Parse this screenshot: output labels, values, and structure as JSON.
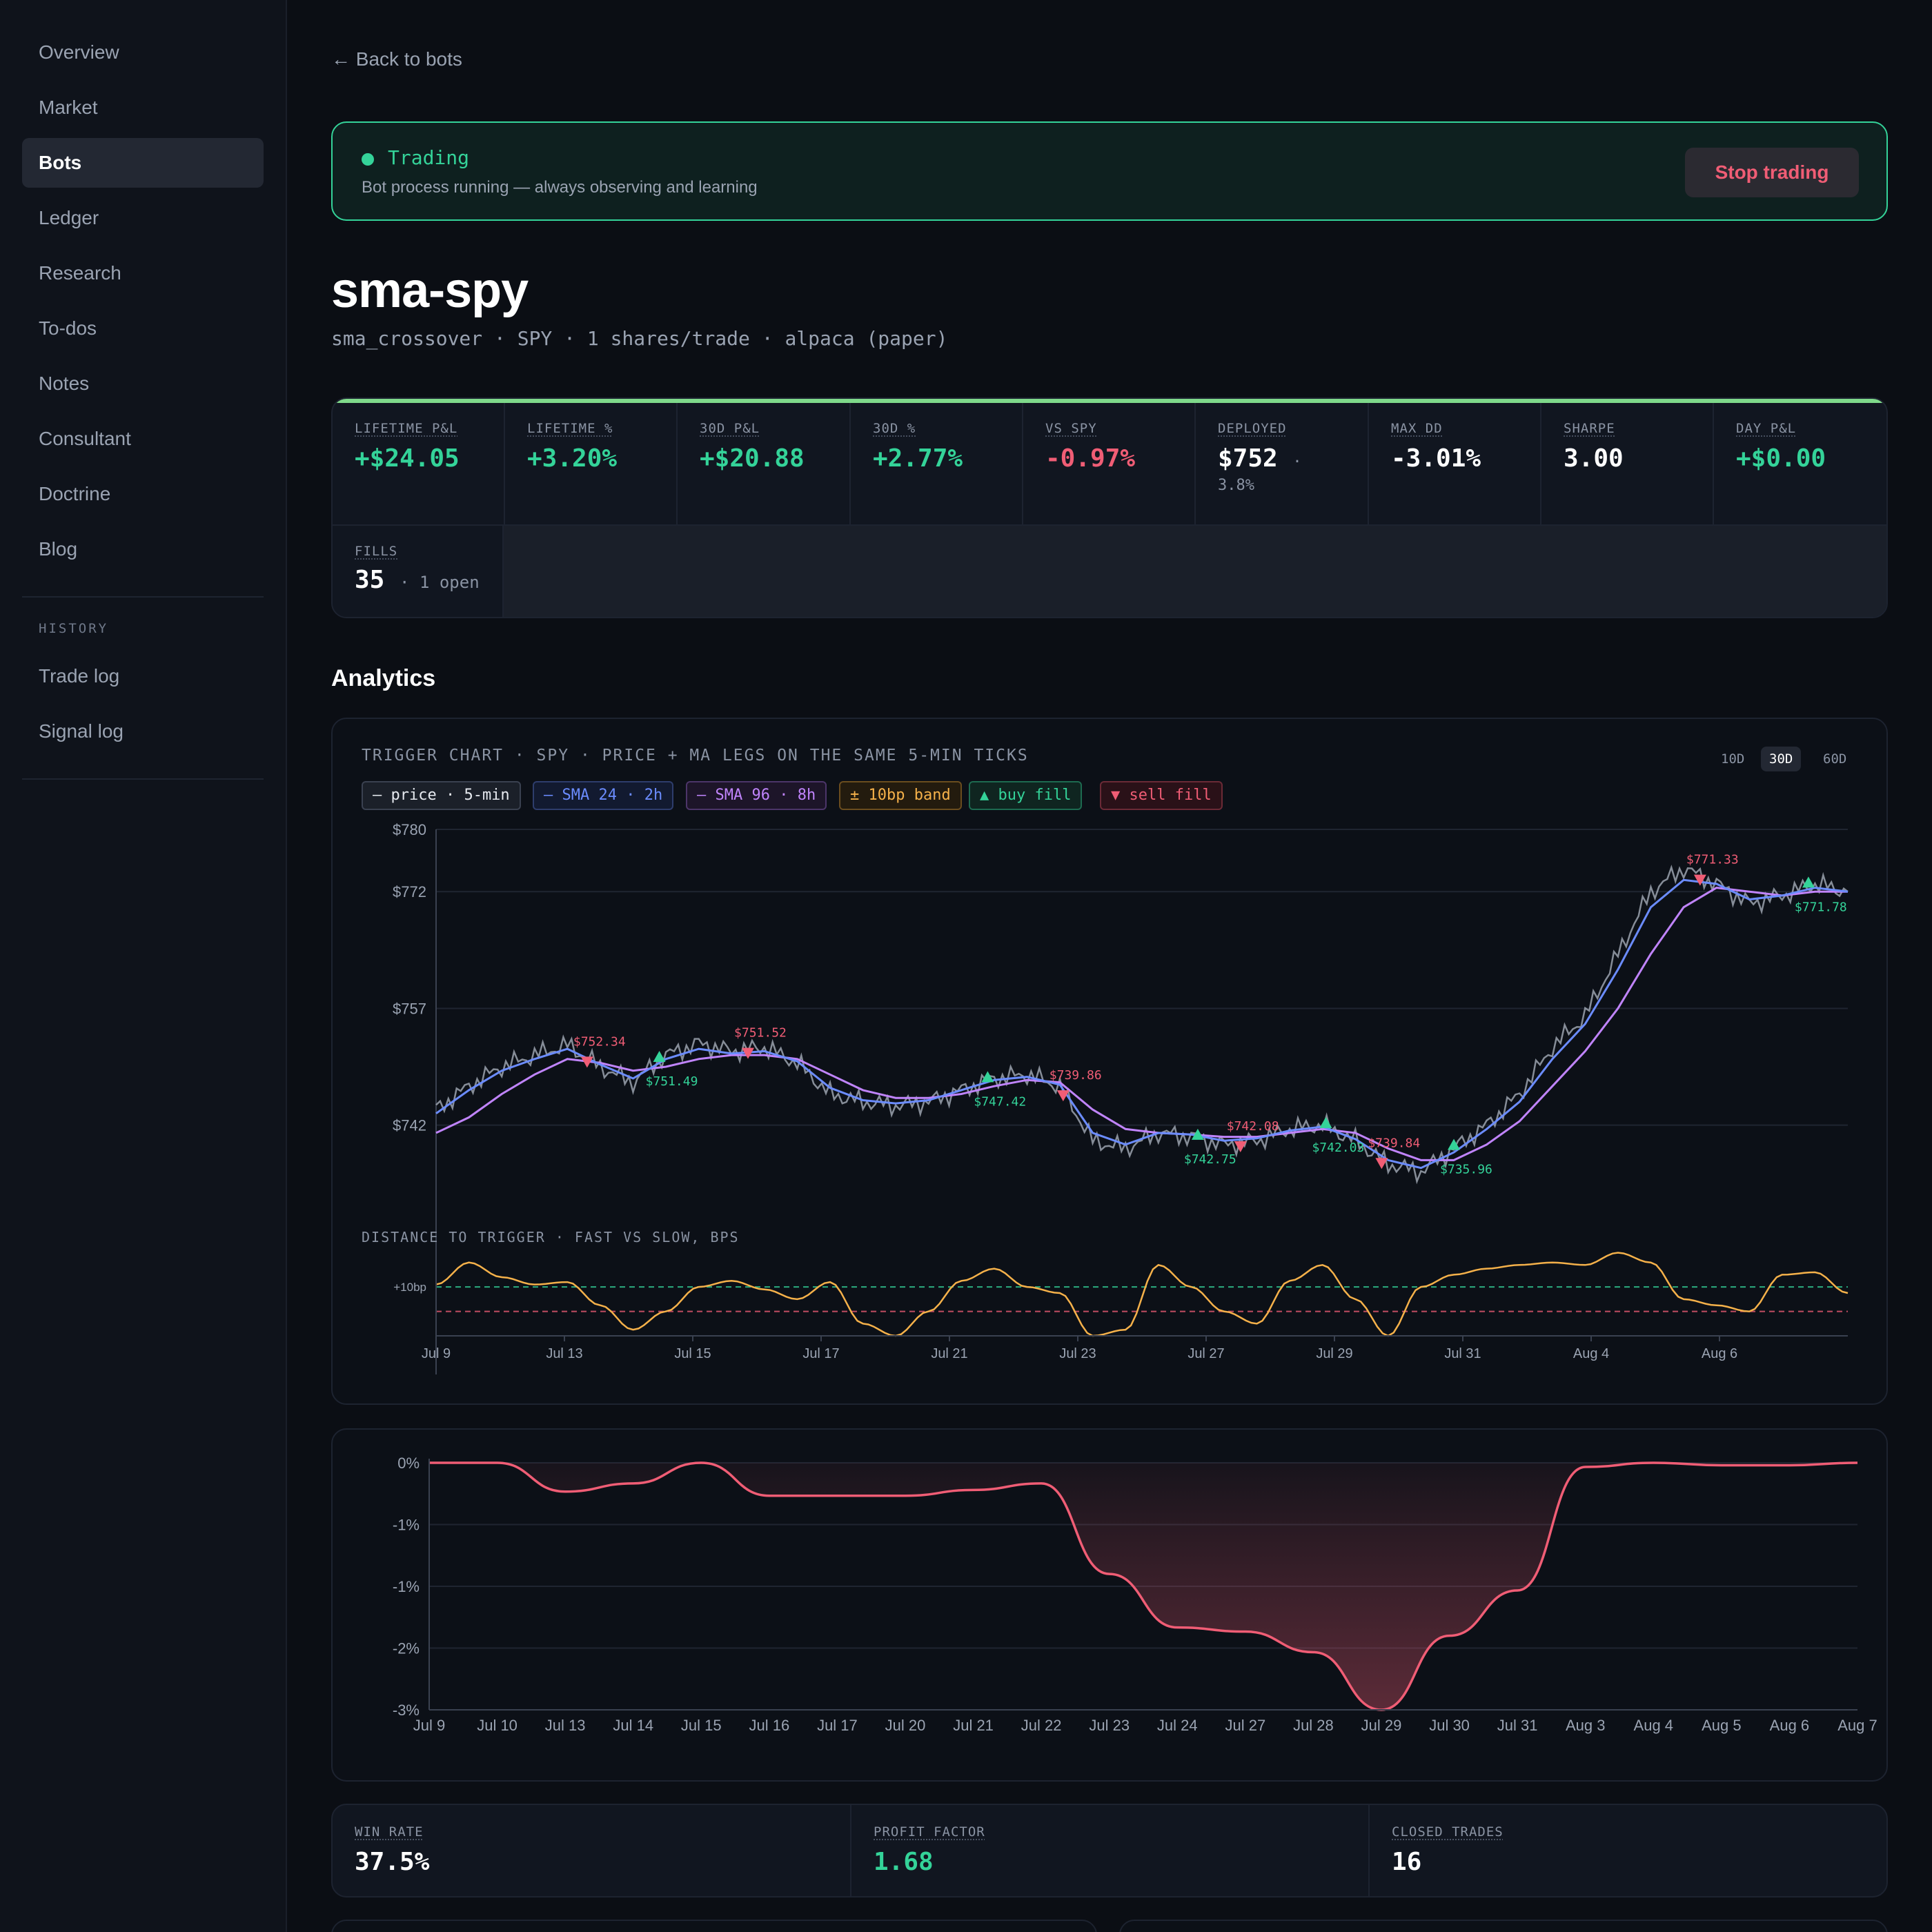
{
  "sidebar": {
    "items": [
      "Overview",
      "Market",
      "Bots",
      "Ledger",
      "Research",
      "To-dos",
      "Notes",
      "Consultant",
      "Doctrine",
      "Blog"
    ],
    "history_heading": "HISTORY",
    "history_items": [
      "Trade log",
      "Signal log"
    ]
  },
  "header": {
    "back_label": "← Back to bots"
  },
  "status": {
    "title": "Trading",
    "subtitle": "Bot process running — always observing and learning",
    "stop_label": "Stop trading"
  },
  "bot": {
    "name": "sma-spy",
    "subtitle": "sma_crossover · SPY · 1 shares/trade · alpaca (paper)"
  },
  "stats": [
    {
      "label": "LIFETIME P&L",
      "value": "+$24.05",
      "tone": "pos"
    },
    {
      "label": "LIFETIME %",
      "value": "+3.20%",
      "tone": "pos"
    },
    {
      "label": "30D P&L",
      "value": "+$20.88",
      "tone": "pos"
    },
    {
      "label": "30D %",
      "value": "+2.77%",
      "tone": "pos"
    },
    {
      "label": "VS SPY",
      "value": "-0.97%",
      "tone": "neg"
    },
    {
      "label": "DEPLOYED",
      "value": "$752",
      "sep": "·",
      "extra": "3.8%",
      "tone": "neu"
    },
    {
      "label": "MAX DD",
      "value": "-3.01%",
      "tone": "neu"
    },
    {
      "label": "SHARPE",
      "value": "3.00",
      "tone": "neu"
    },
    {
      "label": "DAY P&L",
      "value": "+$0.00",
      "tone": "pos"
    }
  ],
  "fills": {
    "label": "FILLS",
    "value": "35",
    "extra": "· 1 open"
  },
  "analytics_title": "Analytics",
  "trigger_chart": {
    "title": "TRIGGER CHART · SPY · PRICE + MA LEGS ON THE SAME 5-MIN TICKS",
    "ranges": [
      "10D",
      "30D",
      "60D"
    ],
    "active_range": "30D",
    "legend": [
      "— price · 5-min",
      "— SMA 24 · 2h",
      "— SMA 96 · 8h",
      "± 10bp band",
      "▲ buy fill",
      "▼ sell fill"
    ],
    "subchart_title": "DISTANCE TO TRIGGER · FAST VS SLOW, BPS",
    "subchart_tick": "+10bp",
    "colors": {
      "price": "#9ca3af",
      "fast": "#6b8cff",
      "slow": "#c084fc",
      "band": "#f5b14a",
      "buy": "#34d399",
      "sell": "#f05d75"
    }
  },
  "chart_data": [
    {
      "type": "line",
      "ylim": [
        730,
        780
      ],
      "yticks": [
        "$780",
        "$772",
        "$757",
        "$742"
      ],
      "ytick_values": [
        780,
        772,
        757,
        742
      ],
      "xticks": [
        "Jul 9",
        "Jul 13",
        "Jul 15",
        "Jul 17",
        "Jul 21",
        "Jul 23",
        "Jul 27",
        "Jul 29",
        "Jul 31",
        "Aug 4",
        "Aug 6"
      ],
      "series": [
        {
          "name": "price · 5-min",
          "values": [
            744,
            747,
            749.5,
            751,
            752.3,
            749.5,
            747.5,
            751,
            752.5,
            751.5,
            752,
            750,
            746,
            745,
            744.5,
            745,
            746.5,
            748,
            748.5,
            747,
            740,
            739,
            741,
            740.5,
            739.5,
            740,
            741.5,
            742,
            740,
            737,
            736,
            739,
            742,
            746,
            752,
            756,
            764,
            772,
            775,
            773,
            770.5,
            771.5,
            773,
            772
          ]
        },
        {
          "name": "SMA 24 · 2h",
          "values": [
            743.5,
            746.5,
            749,
            750.5,
            751.8,
            749.8,
            748,
            750.5,
            751.8,
            751.2,
            751.5,
            750.2,
            746.8,
            745.2,
            744.8,
            745.2,
            746.5,
            747.8,
            748.2,
            747.2,
            741,
            739.5,
            741,
            740.8,
            740,
            740.3,
            741.3,
            741.8,
            740.2,
            737.5,
            736.5,
            738.5,
            741.5,
            745,
            750.5,
            755,
            762,
            770,
            773.5,
            773,
            771,
            771.5,
            772.5,
            772
          ]
        },
        {
          "name": "SMA 96 · 8h",
          "values": [
            741,
            743,
            746,
            748.5,
            750.5,
            750,
            749,
            749.5,
            750.5,
            751,
            751,
            750.5,
            748.5,
            746.5,
            745.5,
            745.5,
            746,
            747,
            747.8,
            747.5,
            744,
            741.5,
            741,
            740.8,
            740.5,
            740.5,
            741,
            741.5,
            741,
            739,
            737.5,
            737.5,
            739.5,
            742.5,
            747,
            751.5,
            757,
            764,
            770,
            772.5,
            772,
            771.5,
            772,
            772
          ]
        }
      ],
      "fill_labels": [
        {
          "text": "$752.34",
          "side": "sell"
        },
        {
          "text": "$751.49",
          "side": "buy"
        },
        {
          "text": "$751.52",
          "side": "sell"
        },
        {
          "text": "$747.42",
          "side": "buy"
        },
        {
          "text": "$739.86",
          "side": "sell"
        },
        {
          "text": "$742.75",
          "side": "buy"
        },
        {
          "text": "$742.08",
          "side": "sell"
        },
        {
          "text": "$742.03",
          "side": "buy"
        },
        {
          "text": "$739.84",
          "side": "sell"
        },
        {
          "text": "$735.96",
          "side": "buy"
        },
        {
          "text": "$771.33",
          "side": "sell"
        },
        {
          "text": "$771.78",
          "side": "buy"
        }
      ]
    },
    {
      "type": "line",
      "ylim": [
        -30,
        40
      ],
      "band_bps": 10,
      "series": [
        {
          "name": "distance",
          "values": [
            12,
            30,
            18,
            12,
            14,
            -5,
            -25,
            -10,
            10,
            15,
            8,
            0,
            14,
            -20,
            -30,
            -10,
            15,
            25,
            10,
            5,
            -30,
            -25,
            28,
            10,
            -10,
            -20,
            15,
            28,
            0,
            -30,
            10,
            20,
            25,
            28,
            30,
            28,
            38,
            30,
            0,
            -5,
            -10,
            20,
            22,
            5
          ]
        }
      ]
    },
    {
      "type": "area",
      "ylim": [
        -3,
        0
      ],
      "yticks": [
        "0%",
        "-1%",
        "-1%",
        "-2%",
        "-3%"
      ],
      "ytick_values": [
        0,
        -0.75,
        -1.5,
        -2.25,
        -3
      ],
      "x": [
        "Jul 9",
        "Jul 10",
        "Jul 13",
        "Jul 14",
        "Jul 15",
        "Jul 16",
        "Jul 17",
        "Jul 20",
        "Jul 21",
        "Jul 22",
        "Jul 23",
        "Jul 24",
        "Jul 27",
        "Jul 28",
        "Jul 29",
        "Jul 30",
        "Jul 31",
        "Aug 3",
        "Aug 4",
        "Aug 5",
        "Aug 6",
        "Aug 7"
      ],
      "series": [
        {
          "name": "drawdown",
          "values": [
            0,
            0,
            -0.35,
            -0.25,
            0,
            -0.4,
            -0.4,
            -0.4,
            -0.33,
            -0.25,
            -1.35,
            -2.0,
            -2.05,
            -2.3,
            -3.0,
            -2.1,
            -1.55,
            -0.05,
            0,
            -0.03,
            -0.03,
            0
          ]
        }
      ]
    }
  ],
  "summary": [
    {
      "label": "WIN RATE",
      "value": "37.5%",
      "tone": "neu"
    },
    {
      "label": "PROFIT FACTOR",
      "value": "1.68",
      "tone": "pos"
    },
    {
      "label": "CLOSED TRADES",
      "value": "16",
      "tone": "neu"
    }
  ]
}
